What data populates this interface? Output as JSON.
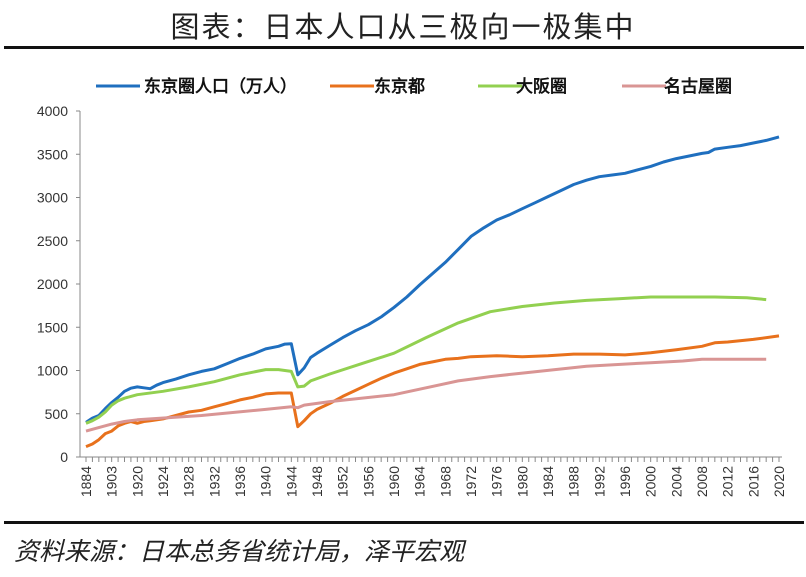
{
  "title": "图表：日本人口从三极向一极集中",
  "source": "资料来源：日本总务省统计局，泽平宏观",
  "chart_data": {
    "type": "line",
    "title": "图表：日本人口从三极向一极集中",
    "xlabel": "",
    "ylabel": "",
    "ylim": [
      0,
      4000
    ],
    "y_ticks": [
      "0",
      "500",
      "1000",
      "1500",
      "2000",
      "2500",
      "3000",
      "3500",
      "4000"
    ],
    "grid": false,
    "legend_position": "top",
    "categories": [
      1884,
      1888,
      1893,
      1898,
      1903,
      1908,
      1913,
      1918,
      1920,
      1921,
      1922,
      1923,
      1924,
      1925,
      1926,
      1927,
      1928,
      1929,
      1930,
      1931,
      1932,
      1933,
      1934,
      1935,
      1936,
      1937,
      1938,
      1939,
      1940,
      1941,
      1942,
      1943,
      1944,
      1945,
      1946,
      1947,
      1948,
      1949,
      1950,
      1951,
      1952,
      1953,
      1954,
      1955,
      1956,
      1957,
      1958,
      1959,
      1960,
      1961,
      1962,
      1963,
      1964,
      1965,
      1966,
      1967,
      1968,
      1969,
      1970,
      1971,
      1972,
      1973,
      1974,
      1975,
      1976,
      1977,
      1978,
      1979,
      1980,
      1981,
      1982,
      1983,
      1984,
      1985,
      1986,
      1987,
      1988,
      1989,
      1990,
      1991,
      1992,
      1993,
      1994,
      1995,
      1996,
      1997,
      1998,
      1999,
      2000,
      2001,
      2002,
      2003,
      2004,
      2005,
      2006,
      2007,
      2008,
      2009,
      2010,
      2011,
      2012,
      2013,
      2014,
      2015,
      2016,
      2017,
      2018,
      2019,
      2020
    ],
    "x_tick_labels": [
      "1884",
      "1903",
      "1920",
      "1924",
      "1928",
      "1932",
      "1936",
      "1940",
      "1944",
      "1948",
      "1952",
      "1956",
      "1960",
      "1964",
      "1968",
      "1972",
      "1976",
      "1980",
      "1984",
      "1988",
      "1992",
      "1996",
      "2000",
      "2004",
      "2008",
      "2012",
      "2016",
      "2020"
    ],
    "series": [
      {
        "name": "东京圈人口（万人）",
        "color": "#1F6FBF",
        "points": [
          [
            1884,
            400
          ],
          [
            1888,
            450
          ],
          [
            1893,
            480
          ],
          [
            1898,
            560
          ],
          [
            1903,
            630
          ],
          [
            1908,
            690
          ],
          [
            1913,
            760
          ],
          [
            1918,
            795
          ],
          [
            1920,
            810
          ],
          [
            1921,
            800
          ],
          [
            1922,
            790
          ],
          [
            1923,
            830
          ],
          [
            1924,
            860
          ],
          [
            1926,
            900
          ],
          [
            1928,
            950
          ],
          [
            1930,
            990
          ],
          [
            1932,
            1020
          ],
          [
            1934,
            1080
          ],
          [
            1936,
            1140
          ],
          [
            1938,
            1190
          ],
          [
            1940,
            1250
          ],
          [
            1942,
            1280
          ],
          [
            1943,
            1305
          ],
          [
            1944,
            1310
          ],
          [
            1945,
            950
          ],
          [
            1946,
            1030
          ],
          [
            1947,
            1150
          ],
          [
            1948,
            1200
          ],
          [
            1950,
            1290
          ],
          [
            1952,
            1380
          ],
          [
            1954,
            1460
          ],
          [
            1956,
            1530
          ],
          [
            1958,
            1620
          ],
          [
            1960,
            1730
          ],
          [
            1962,
            1850
          ],
          [
            1964,
            1990
          ],
          [
            1966,
            2120
          ],
          [
            1968,
            2250
          ],
          [
            1970,
            2400
          ],
          [
            1972,
            2550
          ],
          [
            1974,
            2650
          ],
          [
            1976,
            2740
          ],
          [
            1978,
            2800
          ],
          [
            1980,
            2870
          ],
          [
            1982,
            2940
          ],
          [
            1984,
            3010
          ],
          [
            1986,
            3080
          ],
          [
            1988,
            3150
          ],
          [
            1990,
            3200
          ],
          [
            1992,
            3240
          ],
          [
            1994,
            3260
          ],
          [
            1996,
            3280
          ],
          [
            1998,
            3320
          ],
          [
            2000,
            3360
          ],
          [
            2002,
            3410
          ],
          [
            2004,
            3450
          ],
          [
            2006,
            3480
          ],
          [
            2008,
            3510
          ],
          [
            2009,
            3520
          ],
          [
            2010,
            3560
          ],
          [
            2012,
            3580
          ],
          [
            2014,
            3600
          ],
          [
            2016,
            3630
          ],
          [
            2018,
            3660
          ],
          [
            2020,
            3700
          ]
        ]
      },
      {
        "name": "东京都",
        "color": "#E8711C",
        "points": [
          [
            1884,
            120
          ],
          [
            1888,
            150
          ],
          [
            1893,
            200
          ],
          [
            1898,
            270
          ],
          [
            1903,
            300
          ],
          [
            1908,
            360
          ],
          [
            1913,
            390
          ],
          [
            1918,
            410
          ],
          [
            1920,
            390
          ],
          [
            1921,
            410
          ],
          [
            1922,
            420
          ],
          [
            1924,
            440
          ],
          [
            1926,
            480
          ],
          [
            1928,
            520
          ],
          [
            1930,
            540
          ],
          [
            1932,
            580
          ],
          [
            1934,
            620
          ],
          [
            1936,
            660
          ],
          [
            1938,
            690
          ],
          [
            1940,
            730
          ],
          [
            1942,
            740
          ],
          [
            1944,
            740
          ],
          [
            1945,
            350
          ],
          [
            1946,
            420
          ],
          [
            1947,
            500
          ],
          [
            1948,
            550
          ],
          [
            1950,
            620
          ],
          [
            1952,
            700
          ],
          [
            1954,
            770
          ],
          [
            1956,
            840
          ],
          [
            1958,
            910
          ],
          [
            1960,
            970
          ],
          [
            1962,
            1020
          ],
          [
            1964,
            1070
          ],
          [
            1966,
            1100
          ],
          [
            1968,
            1130
          ],
          [
            1970,
            1140
          ],
          [
            1972,
            1160
          ],
          [
            1974,
            1165
          ],
          [
            1976,
            1170
          ],
          [
            1978,
            1165
          ],
          [
            1980,
            1160
          ],
          [
            1984,
            1170
          ],
          [
            1988,
            1190
          ],
          [
            1992,
            1190
          ],
          [
            1996,
            1180
          ],
          [
            2000,
            1205
          ],
          [
            2004,
            1240
          ],
          [
            2008,
            1280
          ],
          [
            2010,
            1320
          ],
          [
            2012,
            1330
          ],
          [
            2016,
            1360
          ],
          [
            2020,
            1400
          ]
        ]
      },
      {
        "name": "大阪圈",
        "color": "#92D050",
        "points": [
          [
            1884,
            390
          ],
          [
            1888,
            420
          ],
          [
            1893,
            460
          ],
          [
            1898,
            520
          ],
          [
            1903,
            600
          ],
          [
            1908,
            650
          ],
          [
            1913,
            680
          ],
          [
            1918,
            700
          ],
          [
            1920,
            720
          ],
          [
            1924,
            760
          ],
          [
            1928,
            810
          ],
          [
            1932,
            870
          ],
          [
            1936,
            950
          ],
          [
            1940,
            1010
          ],
          [
            1942,
            1010
          ],
          [
            1944,
            990
          ],
          [
            1945,
            810
          ],
          [
            1946,
            820
          ],
          [
            1947,
            880
          ],
          [
            1950,
            960
          ],
          [
            1955,
            1080
          ],
          [
            1960,
            1200
          ],
          [
            1965,
            1380
          ],
          [
            1970,
            1550
          ],
          [
            1975,
            1680
          ],
          [
            1980,
            1740
          ],
          [
            1985,
            1780
          ],
          [
            1990,
            1810
          ],
          [
            1995,
            1830
          ],
          [
            2000,
            1850
          ],
          [
            2005,
            1850
          ],
          [
            2010,
            1850
          ],
          [
            2015,
            1840
          ],
          [
            2018,
            1820
          ]
        ]
      },
      {
        "name": "名古屋圈",
        "color": "#D99594",
        "points": [
          [
            1884,
            300
          ],
          [
            1893,
            340
          ],
          [
            1903,
            380
          ],
          [
            1913,
            410
          ],
          [
            1920,
            430
          ],
          [
            1930,
            480
          ],
          [
            1940,
            550
          ],
          [
            1944,
            580
          ],
          [
            1945,
            570
          ],
          [
            1946,
            600
          ],
          [
            1950,
            640
          ],
          [
            1960,
            720
          ],
          [
            1970,
            880
          ],
          [
            1975,
            930
          ],
          [
            1980,
            970
          ],
          [
            1990,
            1050
          ],
          [
            2000,
            1090
          ],
          [
            2005,
            1110
          ],
          [
            2008,
            1130
          ],
          [
            2010,
            1130
          ],
          [
            2018,
            1130
          ]
        ]
      }
    ]
  }
}
